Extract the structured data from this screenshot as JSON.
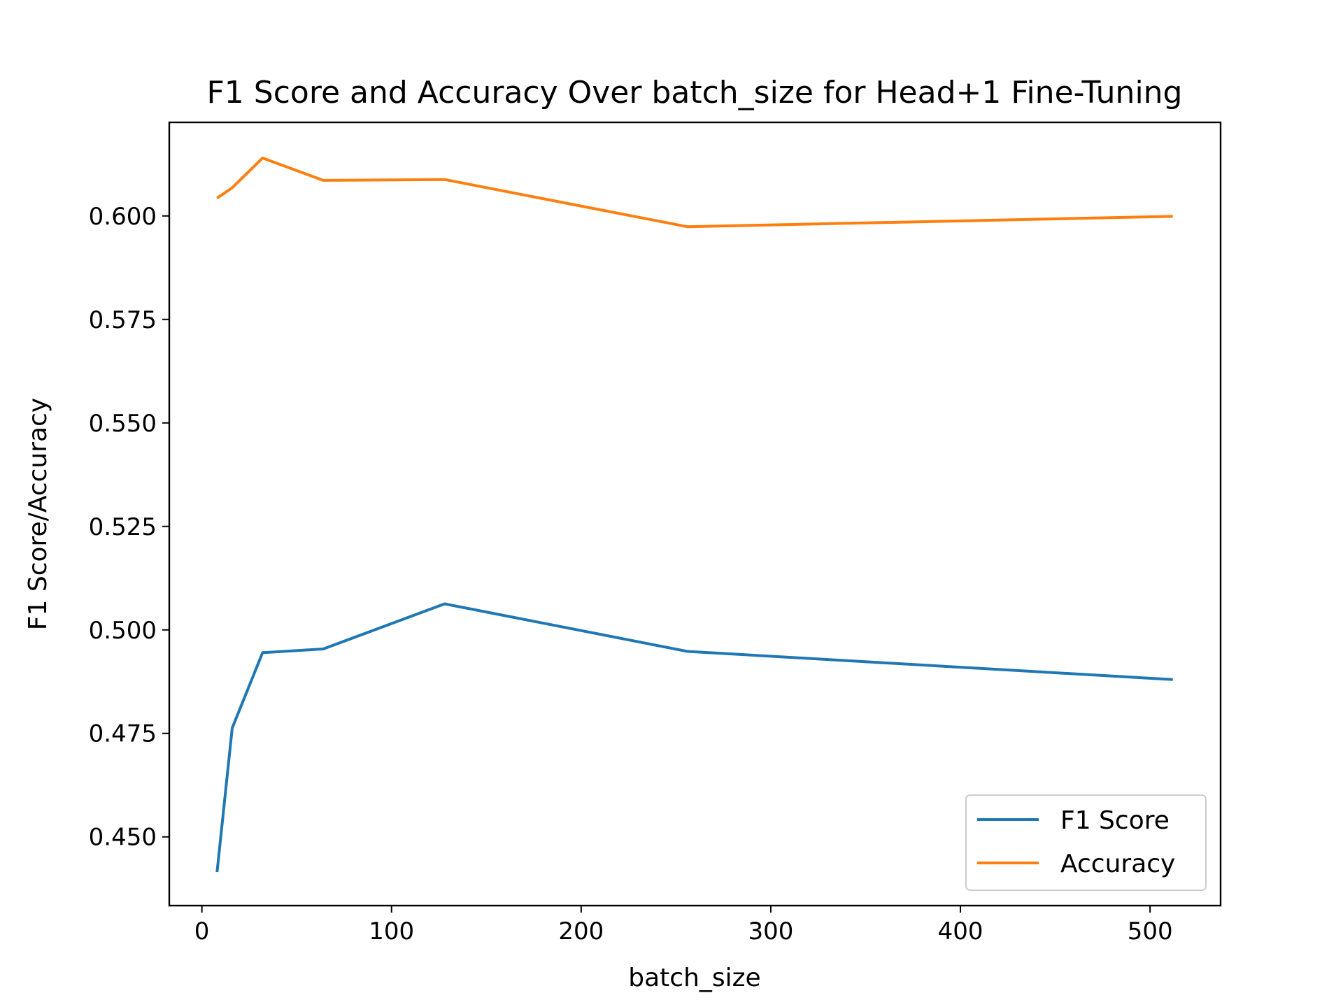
{
  "chart_data": {
    "type": "line",
    "title": "F1 Score and Accuracy Over batch_size for Head+1 Fine-Tuning",
    "xlabel": "batch_size",
    "ylabel": "F1 Score/Accuracy",
    "x": [
      8,
      16,
      32,
      64,
      128,
      256,
      512
    ],
    "series": [
      {
        "name": "F1 Score",
        "color": "#1f77b4",
        "values": [
          0.4415,
          0.4763,
          0.4945,
          0.4954,
          0.5063,
          0.4948,
          0.488
        ]
      },
      {
        "name": "Accuracy",
        "color": "#ff7f0e",
        "values": [
          0.6043,
          0.6068,
          0.614,
          0.6086,
          0.6088,
          0.5974,
          0.5999
        ]
      }
    ],
    "xlim": [
      -17.2,
      537.2
    ],
    "ylim": [
      0.4334,
      0.6226
    ],
    "xticks": [
      0,
      100,
      200,
      300,
      400,
      500
    ],
    "xtick_labels": [
      "0",
      "100",
      "200",
      "300",
      "400",
      "500"
    ],
    "yticks": [
      0.45,
      0.475,
      0.5,
      0.525,
      0.55,
      0.575,
      0.6
    ],
    "ytick_labels": [
      "0.450",
      "0.475",
      "0.500",
      "0.525",
      "0.550",
      "0.575",
      "0.600"
    ],
    "grid": false,
    "legend_position": "lower-right"
  }
}
